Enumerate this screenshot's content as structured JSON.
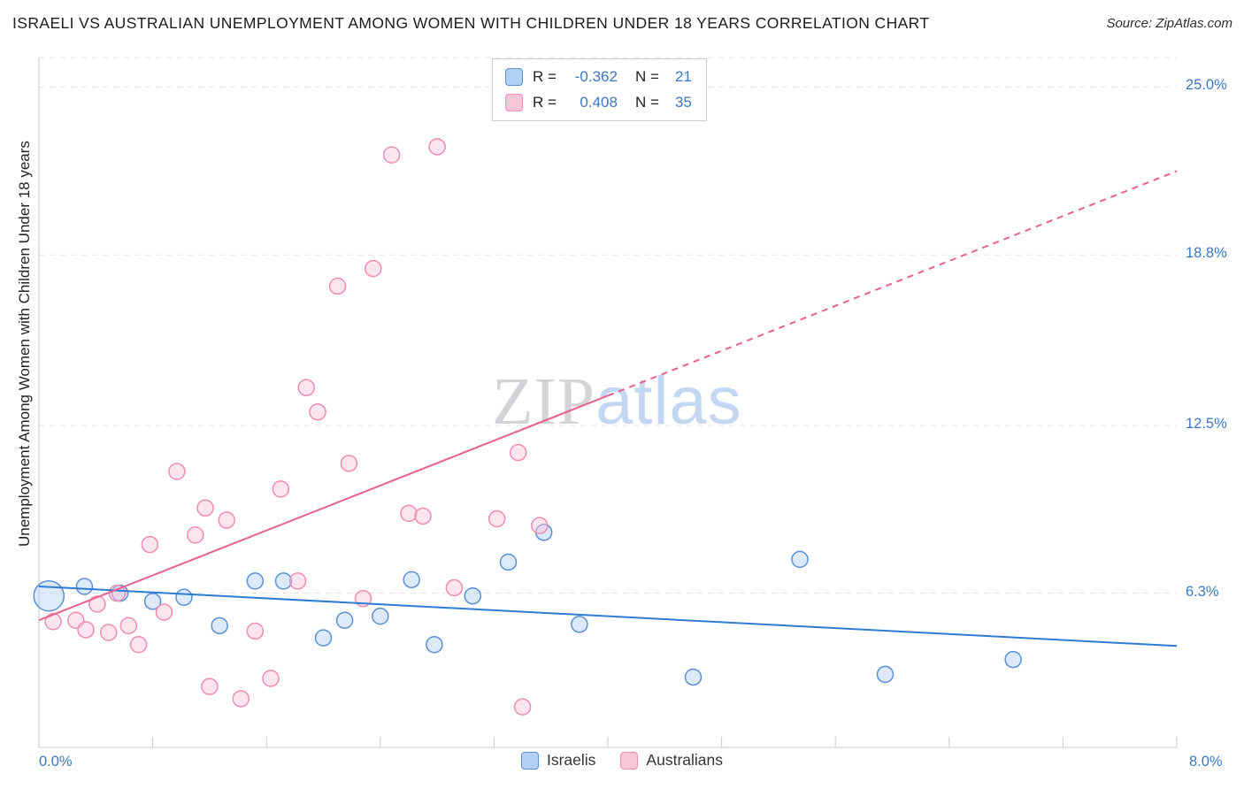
{
  "header": {
    "title": "ISRAELI VS AUSTRALIAN UNEMPLOYMENT AMONG WOMEN WITH CHILDREN UNDER 18 YEARS CORRELATION CHART",
    "source": "Source: ZipAtlas.com"
  },
  "chart_data": {
    "type": "scatter",
    "title": "Israeli vs Australian Unemployment Among Women with Children Under 18 years",
    "xlabel": "",
    "ylabel": "Unemployment Among Women with Children Under 18 years",
    "xlim": [
      0,
      8
    ],
    "ylim": [
      0.6,
      26.1
    ],
    "grid": "horizontal-dashed",
    "watermark": {
      "zip": "ZIP",
      "atlas": "atlas"
    },
    "x_ticks": [
      {
        "value": 0.0,
        "label": "0.0%"
      },
      {
        "value": 8.0,
        "label": "8.0%"
      }
    ],
    "y_ticks": [
      {
        "value": 25.0,
        "label": "25.0%"
      },
      {
        "value": 18.8,
        "label": "18.8%"
      },
      {
        "value": 12.5,
        "label": "12.5%"
      },
      {
        "value": 6.3,
        "label": "6.3%"
      }
    ],
    "y_gridlines": [
      6.3,
      12.5,
      18.8,
      25.0,
      26.1
    ],
    "x_minor_ticks": [
      0.8,
      1.6,
      2.4,
      3.2,
      4.0,
      4.8,
      5.6,
      6.4,
      7.2,
      8.0
    ],
    "legend_stats": [
      {
        "series": "Israelis",
        "r_label": "R =",
        "r": "-0.362",
        "n_label": "N =",
        "n": "21"
      },
      {
        "series": "Australians",
        "r_label": "R =",
        "r": "0.408",
        "n_label": "N =",
        "n": "35"
      }
    ],
    "series": [
      {
        "name": "Israelis",
        "color": "#b3d1f5",
        "stroke": "#5a8fd6",
        "trend_color": "#2d7bd3",
        "trend": [
          {
            "x1": 0,
            "y1": 6.55,
            "x2": 8,
            "y2": 4.35,
            "dash": false
          }
        ],
        "points": [
          [
            0.07,
            6.2,
            17
          ],
          [
            0.32,
            6.55
          ],
          [
            0.57,
            6.3
          ],
          [
            0.8,
            6.0
          ],
          [
            1.02,
            6.15
          ],
          [
            1.27,
            5.1
          ],
          [
            1.52,
            6.75
          ],
          [
            1.72,
            6.75
          ],
          [
            2.0,
            4.65
          ],
          [
            2.15,
            5.3
          ],
          [
            2.4,
            5.45
          ],
          [
            2.62,
            6.8
          ],
          [
            2.78,
            4.4
          ],
          [
            3.05,
            6.2
          ],
          [
            3.3,
            7.45
          ],
          [
            3.55,
            8.55
          ],
          [
            3.8,
            5.15
          ],
          [
            4.6,
            3.2
          ],
          [
            5.35,
            7.55
          ],
          [
            5.95,
            3.3
          ],
          [
            6.85,
            3.85
          ]
        ]
      },
      {
        "name": "Australians",
        "color": "#f9c6d9",
        "stroke": "#f08cb0",
        "trend_color": "#e8618c",
        "trend": [
          {
            "x1": 0,
            "y1": 5.3,
            "x2": 4.0,
            "y2": 13.6,
            "dash": false
          },
          {
            "x1": 4.0,
            "y1": 13.6,
            "x2": 8,
            "y2": 21.9,
            "dash": true
          }
        ],
        "points": [
          [
            0.1,
            5.25
          ],
          [
            0.26,
            5.3
          ],
          [
            0.33,
            4.95
          ],
          [
            0.41,
            5.9
          ],
          [
            0.49,
            4.85
          ],
          [
            0.55,
            6.3
          ],
          [
            0.63,
            5.1
          ],
          [
            0.7,
            4.4
          ],
          [
            0.78,
            8.1
          ],
          [
            0.88,
            5.6
          ],
          [
            0.97,
            10.8
          ],
          [
            1.1,
            8.45
          ],
          [
            1.17,
            9.45
          ],
          [
            1.2,
            2.85
          ],
          [
            1.32,
            9.0
          ],
          [
            1.42,
            2.4
          ],
          [
            1.52,
            4.9
          ],
          [
            1.63,
            3.15
          ],
          [
            1.7,
            10.15
          ],
          [
            1.82,
            6.75
          ],
          [
            1.88,
            13.9
          ],
          [
            1.96,
            13.0
          ],
          [
            2.1,
            17.65
          ],
          [
            2.18,
            11.1
          ],
          [
            2.28,
            6.1
          ],
          [
            2.35,
            18.3
          ],
          [
            2.48,
            22.5
          ],
          [
            2.6,
            9.25
          ],
          [
            2.7,
            9.15
          ],
          [
            2.8,
            22.8
          ],
          [
            2.92,
            6.5
          ],
          [
            3.22,
            9.05
          ],
          [
            3.37,
            11.5
          ],
          [
            3.4,
            2.1
          ],
          [
            3.52,
            8.8
          ]
        ]
      }
    ]
  },
  "footer_legend": [
    {
      "label": "Israelis"
    },
    {
      "label": "Australians"
    }
  ]
}
